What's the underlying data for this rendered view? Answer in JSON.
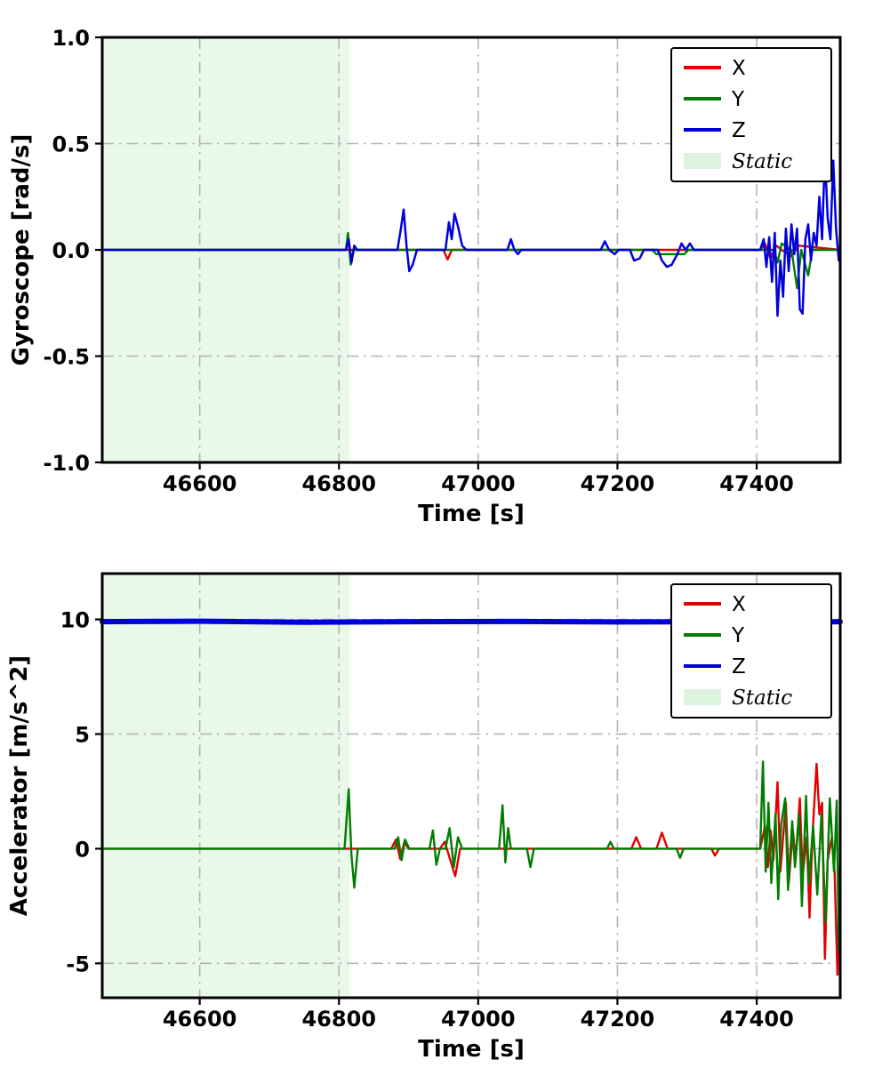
{
  "colors": {
    "x_series": "#e00000",
    "y_series": "#007d00",
    "z_series": "#0000dd",
    "static_fill": "#e8f8e9",
    "static_swatch": "#ddf3de",
    "grid": "#b4b4b4",
    "frame": "#000000"
  },
  "chart_data": [
    {
      "type": "line",
      "title": "",
      "xlabel": "Time [s]",
      "ylabel": "Gyroscope [rad/s]",
      "xlim": [
        46460,
        47520
      ],
      "ylim": [
        -1.0,
        1.0
      ],
      "xticks": [
        46600,
        46800,
        47000,
        47200,
        47400
      ],
      "xticklabels": [
        "46600",
        "46800",
        "47000",
        "47200",
        "47400"
      ],
      "yticks": [
        -1.0,
        -0.5,
        0.0,
        0.5,
        1.0
      ],
      "yticklabels": [
        "-1.0",
        "-0.5",
        "0.0",
        "0.5",
        "1.0"
      ],
      "grid": true,
      "legend_position": "upper right",
      "static_region": [
        46460,
        46815
      ],
      "legend": [
        {
          "label": "X",
          "swatch": "line",
          "color": "#e00000",
          "italic": false
        },
        {
          "label": "Y",
          "swatch": "line",
          "color": "#007d00",
          "italic": false
        },
        {
          "label": "Z",
          "swatch": "line",
          "color": "#0000dd",
          "italic": false
        },
        {
          "label": "Static",
          "swatch": "patch",
          "color": "#ddf3de",
          "italic": true
        }
      ],
      "series": [
        {
          "name": "X",
          "color": "#e00000",
          "width": 2.4,
          "points": [
            [
              46460,
              0
            ],
            [
              46950,
              0
            ],
            [
              46956,
              -0.045
            ],
            [
              46962,
              0
            ],
            [
              47405,
              0
            ],
            [
              47412,
              0.03
            ],
            [
              47420,
              -0.04
            ],
            [
              47428,
              0.02
            ],
            [
              47436,
              0
            ],
            [
              47450,
              -0.03
            ],
            [
              47460,
              0.02
            ],
            [
              47520,
              0
            ]
          ]
        },
        {
          "name": "Y",
          "color": "#007d00",
          "width": 2.4,
          "points": [
            [
              46460,
              0
            ],
            [
              46810,
              0
            ],
            [
              46813,
              0.08
            ],
            [
              46817,
              -0.07
            ],
            [
              46821,
              0
            ],
            [
              47250,
              0
            ],
            [
              47256,
              -0.02
            ],
            [
              47296,
              -0.02
            ],
            [
              47302,
              0
            ],
            [
              47405,
              0
            ],
            [
              47425,
              0
            ],
            [
              47430,
              -0.06
            ],
            [
              47436,
              0.03
            ],
            [
              47450,
              0
            ],
            [
              47458,
              -0.18
            ],
            [
              47464,
              0
            ],
            [
              47474,
              -0.12
            ],
            [
              47480,
              0
            ],
            [
              47520,
              0
            ]
          ]
        },
        {
          "name": "Z",
          "color": "#0000dd",
          "width": 2.5,
          "points": [
            [
              46460,
              0
            ],
            [
              46810,
              0
            ],
            [
              46814,
              0.05
            ],
            [
              46818,
              -0.06
            ],
            [
              46822,
              0.02
            ],
            [
              46826,
              0
            ],
            [
              46884,
              0
            ],
            [
              46889,
              0.1
            ],
            [
              46893,
              0.19
            ],
            [
              46897,
              0.02
            ],
            [
              46901,
              -0.1
            ],
            [
              46906,
              -0.07
            ],
            [
              46912,
              0
            ],
            [
              46953,
              0
            ],
            [
              46958,
              0.13
            ],
            [
              46962,
              0.05
            ],
            [
              46966,
              0.17
            ],
            [
              46971,
              0.11
            ],
            [
              46977,
              0.02
            ],
            [
              46983,
              0
            ],
            [
              47042,
              0
            ],
            [
              47047,
              0.05
            ],
            [
              47052,
              0
            ],
            [
              47057,
              -0.02
            ],
            [
              47062,
              0
            ],
            [
              47176,
              0
            ],
            [
              47182,
              0.04
            ],
            [
              47188,
              0
            ],
            [
              47196,
              -0.02
            ],
            [
              47202,
              0
            ],
            [
              47218,
              0
            ],
            [
              47224,
              -0.05
            ],
            [
              47232,
              -0.04
            ],
            [
              47238,
              0
            ],
            [
              47258,
              0
            ],
            [
              47264,
              -0.05
            ],
            [
              47271,
              -0.08
            ],
            [
              47278,
              -0.07
            ],
            [
              47286,
              -0.02
            ],
            [
              47292,
              0.03
            ],
            [
              47298,
              0
            ],
            [
              47304,
              0.03
            ],
            [
              47310,
              0
            ],
            [
              47405,
              0
            ],
            [
              47410,
              0.05
            ],
            [
              47414,
              -0.08
            ],
            [
              47418,
              0.06
            ],
            [
              47422,
              -0.15
            ],
            [
              47426,
              0.08
            ],
            [
              47430,
              -0.31
            ],
            [
              47434,
              -0.05
            ],
            [
              47438,
              -0.22
            ],
            [
              47442,
              0.1
            ],
            [
              47446,
              -0.1
            ],
            [
              47450,
              0.12
            ],
            [
              47454,
              -0.02
            ],
            [
              47458,
              0.1
            ],
            [
              47462,
              -0.28
            ],
            [
              47466,
              -0.3
            ],
            [
              47470,
              0.05
            ],
            [
              47474,
              0.12
            ],
            [
              47478,
              -0.05
            ],
            [
              47482,
              0.08
            ],
            [
              47486,
              0.02
            ],
            [
              47490,
              0.25
            ],
            [
              47494,
              0.05
            ],
            [
              47498,
              0.45
            ],
            [
              47502,
              0.15
            ],
            [
              47506,
              0.05
            ],
            [
              47510,
              0.42
            ],
            [
              47514,
              0.1
            ],
            [
              47518,
              -0.05
            ],
            [
              47520,
              0
            ]
          ]
        }
      ]
    },
    {
      "type": "line",
      "title": "",
      "xlabel": "Time [s]",
      "ylabel": "Accelerator [m/s^2]",
      "xlim": [
        46460,
        47520
      ],
      "ylim": [
        -6.5,
        12
      ],
      "xticks": [
        46600,
        46800,
        47000,
        47200,
        47400
      ],
      "xticklabels": [
        "46600",
        "46800",
        "47000",
        "47200",
        "47400"
      ],
      "yticks": [
        -5,
        0,
        5,
        10
      ],
      "yticklabels": [
        "-5",
        "0",
        "5",
        "10"
      ],
      "grid": true,
      "legend_position": "upper right",
      "static_region": [
        46460,
        46815
      ],
      "legend": [
        {
          "label": "X",
          "swatch": "line",
          "color": "#e00000",
          "italic": false
        },
        {
          "label": "Y",
          "swatch": "line",
          "color": "#007d00",
          "italic": false
        },
        {
          "label": "Z",
          "swatch": "line",
          "color": "#0000dd",
          "italic": false
        },
        {
          "label": "Static",
          "swatch": "patch",
          "color": "#ddf3de",
          "italic": true
        }
      ],
      "series": [
        {
          "name": "X",
          "color": "#e00000",
          "width": 2.4,
          "points": [
            [
              46460,
              0
            ],
            [
              46875,
              0
            ],
            [
              46882,
              0.4
            ],
            [
              46888,
              -0.45
            ],
            [
              46894,
              0.3
            ],
            [
              46900,
              0
            ],
            [
              46945,
              0
            ],
            [
              46952,
              0.3
            ],
            [
              46960,
              -0.5
            ],
            [
              46967,
              -1.2
            ],
            [
              46974,
              0
            ],
            [
              47220,
              0
            ],
            [
              47227,
              0.5
            ],
            [
              47234,
              0
            ],
            [
              47256,
              0
            ],
            [
              47264,
              0.7
            ],
            [
              47272,
              0
            ],
            [
              47335,
              0
            ],
            [
              47340,
              -0.3
            ],
            [
              47346,
              0
            ],
            [
              47405,
              0
            ],
            [
              47412,
              1.0
            ],
            [
              47416,
              -0.8
            ],
            [
              47420,
              0.8
            ],
            [
              47424,
              -0.5
            ],
            [
              47430,
              2.9
            ],
            [
              47434,
              -1.0
            ],
            [
              47438,
              0.5
            ],
            [
              47442,
              2.0
            ],
            [
              47446,
              -1.5
            ],
            [
              47452,
              0.8
            ],
            [
              47456,
              -0.5
            ],
            [
              47462,
              2.2
            ],
            [
              47466,
              -1.2
            ],
            [
              47472,
              0.5
            ],
            [
              47476,
              -3.0
            ],
            [
              47480,
              0.5
            ],
            [
              47486,
              3.7
            ],
            [
              47490,
              1.5
            ],
            [
              47494,
              2.0
            ],
            [
              47498,
              -4.8
            ],
            [
              47502,
              -0.5
            ],
            [
              47508,
              0.5
            ],
            [
              47512,
              -1.0
            ],
            [
              47516,
              -5.5
            ],
            [
              47519,
              -1.0
            ],
            [
              47520,
              -0.5
            ]
          ]
        },
        {
          "name": "Y",
          "color": "#007d00",
          "width": 2.4,
          "points": [
            [
              46460,
              0
            ],
            [
              46808,
              0
            ],
            [
              46814,
              2.6
            ],
            [
              46818,
              -0.3
            ],
            [
              46822,
              -1.7
            ],
            [
              46827,
              0
            ],
            [
              46880,
              0
            ],
            [
              46885,
              0.5
            ],
            [
              46890,
              -0.5
            ],
            [
              46895,
              0.4
            ],
            [
              46901,
              0
            ],
            [
              46930,
              0
            ],
            [
              46935,
              0.8
            ],
            [
              46940,
              -0.7
            ],
            [
              46945,
              0
            ],
            [
              46953,
              0
            ],
            [
              46959,
              0.9
            ],
            [
              46965,
              -0.8
            ],
            [
              46971,
              0.5
            ],
            [
              46977,
              0
            ],
            [
              47030,
              0
            ],
            [
              47035,
              1.9
            ],
            [
              47039,
              -0.6
            ],
            [
              47043,
              0.9
            ],
            [
              47047,
              0
            ],
            [
              47070,
              0
            ],
            [
              47075,
              -0.8
            ],
            [
              47080,
              0
            ],
            [
              47185,
              0
            ],
            [
              47190,
              0.3
            ],
            [
              47195,
              0
            ],
            [
              47285,
              0
            ],
            [
              47290,
              -0.4
            ],
            [
              47295,
              0
            ],
            [
              47405,
              0
            ],
            [
              47409,
              3.8
            ],
            [
              47413,
              -1.0
            ],
            [
              47417,
              2.0
            ],
            [
              47421,
              -1.5
            ],
            [
              47427,
              1.5
            ],
            [
              47431,
              -2.2
            ],
            [
              47435,
              1.0
            ],
            [
              47441,
              2.2
            ],
            [
              47445,
              -1.8
            ],
            [
              47451,
              1.2
            ],
            [
              47455,
              -0.8
            ],
            [
              47461,
              1.5
            ],
            [
              47465,
              -2.5
            ],
            [
              47471,
              2.3
            ],
            [
              47475,
              -1.5
            ],
            [
              47481,
              1.0
            ],
            [
              47487,
              -2.0
            ],
            [
              47493,
              1.5
            ],
            [
              47499,
              -3.2
            ],
            [
              47505,
              2.2
            ],
            [
              47511,
              -1.0
            ],
            [
              47515,
              2.1
            ],
            [
              47518,
              -4.5
            ],
            [
              47520,
              -1.0
            ]
          ]
        },
        {
          "name": "Z",
          "color": "#0000dd",
          "width": 6,
          "points": [
            [
              46460,
              9.9
            ],
            [
              46600,
              9.92
            ],
            [
              46750,
              9.88
            ],
            [
              46900,
              9.9
            ],
            [
              47050,
              9.91
            ],
            [
              47200,
              9.89
            ],
            [
              47350,
              9.9
            ],
            [
              47440,
              9.88
            ],
            [
              47520,
              9.9
            ]
          ]
        }
      ]
    }
  ]
}
